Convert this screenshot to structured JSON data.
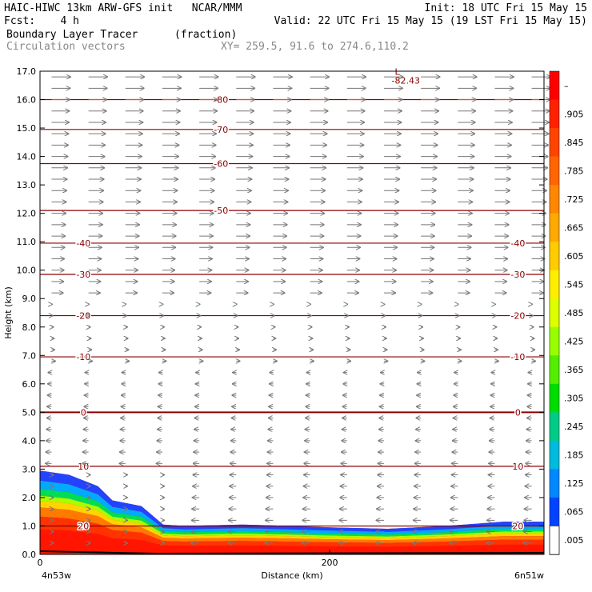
{
  "header": {
    "line1_left": "HAIC-HIWC 13km ARW-GFS init   NCAR/MMM",
    "line1_right": "Init: 18 UTC Fri 15 May 15",
    "line2_left": "Fcst:    4 h",
    "line2_right": "Valid: 22 UTC Fri 15 May 15 (19 LST Fri 15 May 15)",
    "field_name": "Boundary Layer Tracer",
    "field_units": "(fraction)",
    "overlay_name": "Circulation vectors",
    "cross_section": "XY= 259.5, 91.6 to 274.6,110.2"
  },
  "chart_data": {
    "type": "heatmap",
    "title": "Boundary Layer Tracer",
    "units": "(fraction)",
    "xlabel": "Distance (km)",
    "ylabel": "Height (km)",
    "xlim": [
      0,
      348
    ],
    "ylim": [
      0,
      17
    ],
    "x_ticks": [
      0,
      200
    ],
    "x_tick_labels": [
      "0",
      "200"
    ],
    "x_end_labels": [
      "4n53w",
      "6n51w"
    ],
    "y_ticks": [
      0,
      1,
      2,
      3,
      4,
      5,
      6,
      7,
      8,
      9,
      10,
      11,
      12,
      13,
      14,
      15,
      16,
      17
    ],
    "y_tick_labels": [
      "0.0",
      "1.0",
      "2.0",
      "3.0",
      "4.0",
      "5.0",
      "6.0",
      "7.0",
      "8.0",
      "9.0",
      "10.0",
      "11.0",
      "12.0",
      "13.0",
      "14.0",
      "15.0",
      "16.0",
      "17.0"
    ],
    "colorbar": {
      "labels": [
        "–",
        ".905",
        ".845",
        ".785",
        ".725",
        ".665",
        ".605",
        ".545",
        ".485",
        ".425",
        ".365",
        ".305",
        ".245",
        ".185",
        ".125",
        ".065",
        ".005"
      ],
      "colors": [
        "#ff0000",
        "#ff2200",
        "#ff4400",
        "#ff6600",
        "#ff8800",
        "#ffaa00",
        "#ffcc00",
        "#ffee00",
        "#ddff00",
        "#99ff00",
        "#55ee00",
        "#00dd00",
        "#00cc88",
        "#00bbdd",
        "#0088ff",
        "#0044ff",
        "#ffffff"
      ]
    },
    "tracer_top_km": [
      [
        0,
        2.95
      ],
      [
        20,
        2.8
      ],
      [
        40,
        2.4
      ],
      [
        50,
        1.9
      ],
      [
        70,
        1.7
      ],
      [
        85,
        1.05
      ],
      [
        100,
        1.0
      ],
      [
        140,
        1.05
      ],
      [
        160,
        1.02
      ],
      [
        200,
        0.95
      ],
      [
        240,
        0.9
      ],
      [
        280,
        1.0
      ],
      [
        320,
        1.15
      ],
      [
        348,
        1.15
      ]
    ],
    "isotherms": [
      {
        "label": "-80",
        "height_km": 16.0
      },
      {
        "label": "-70",
        "height_km": 14.95
      },
      {
        "label": "-60",
        "height_km": 13.75
      },
      {
        "label": "-50",
        "height_km": 12.1
      },
      {
        "label": "-40",
        "height_km": 10.95
      },
      {
        "label": "-30",
        "height_km": 9.85
      },
      {
        "label": "-20",
        "height_km": 8.4
      },
      {
        "label": "-10",
        "height_km": 6.95
      },
      {
        "label": "0",
        "height_km": 5.0
      },
      {
        "label": "10",
        "height_km": 3.1
      },
      {
        "label": "20",
        "height_km": 1.0
      }
    ],
    "low_marker": {
      "symbol": "L",
      "value": "-82.43"
    },
    "wind": {
      "upper_direction": "eastward",
      "lower_direction": "westward"
    }
  }
}
